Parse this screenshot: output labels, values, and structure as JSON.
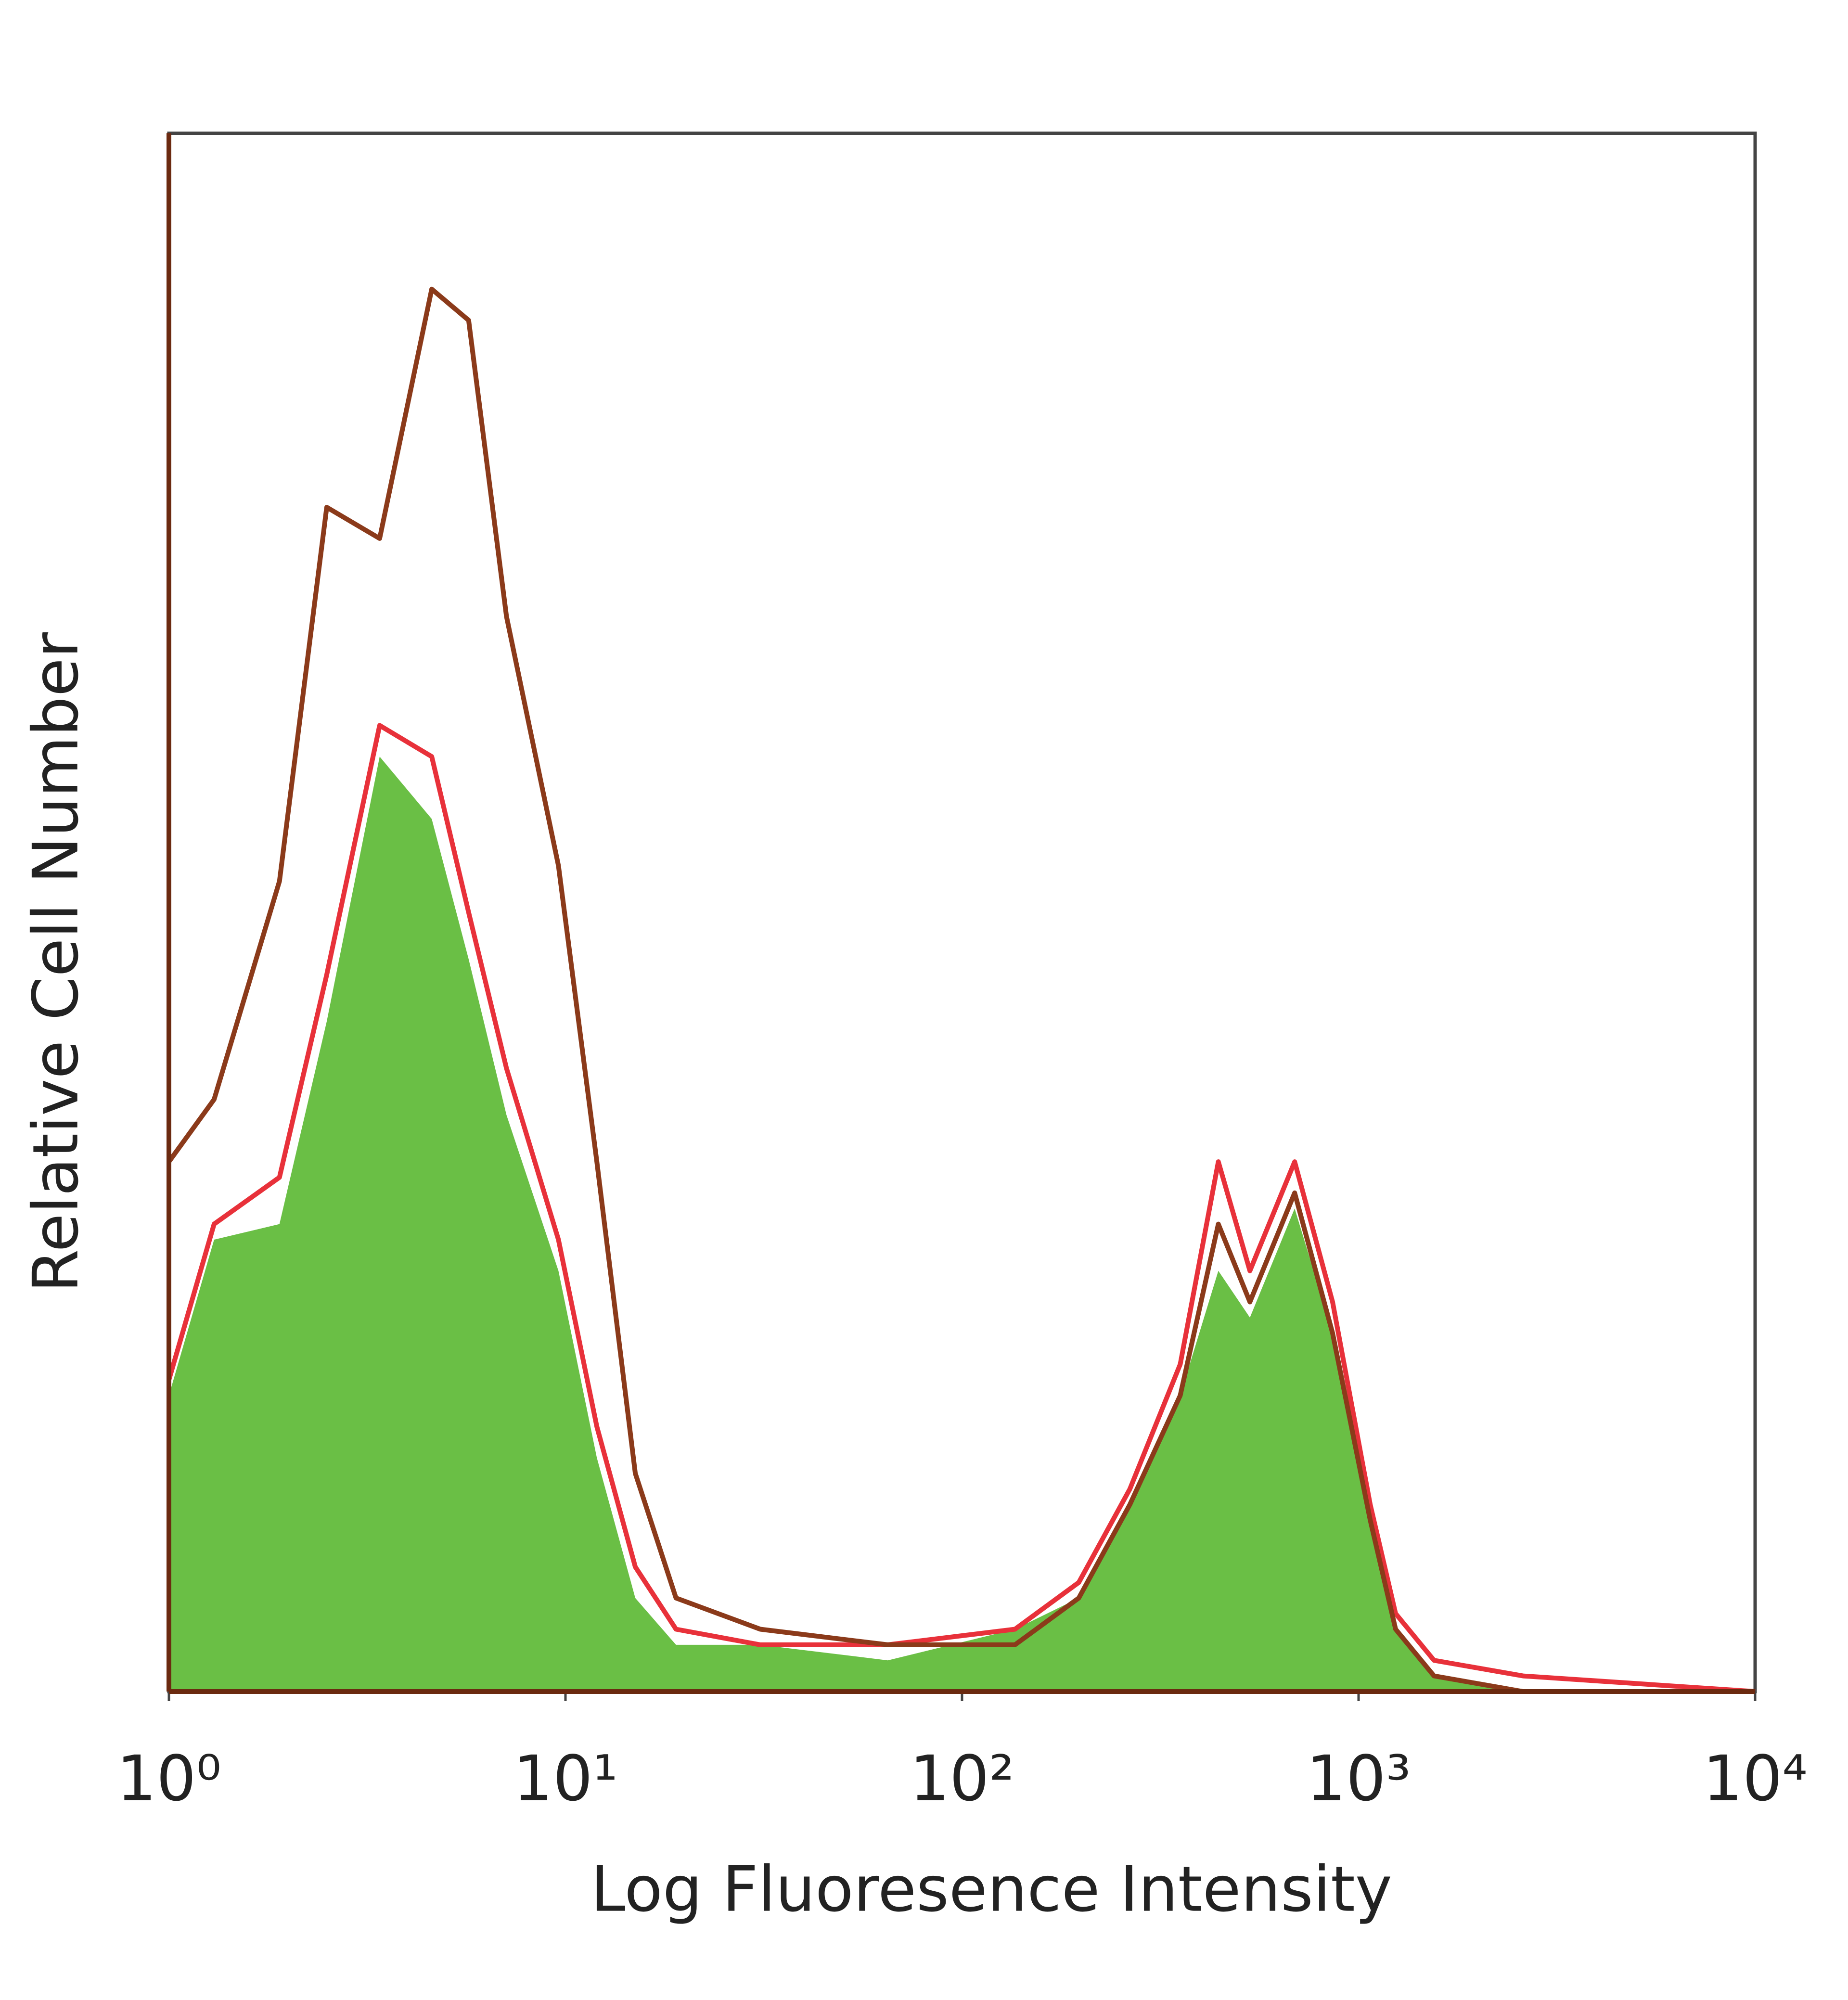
{
  "chart_data": {
    "type": "histogram-overlay",
    "xlabel": "Log Fluoresence Intensity",
    "ylabel": "Relative Cell Number",
    "xscale": "log",
    "xlim": [
      1,
      10000
    ],
    "ylim": [
      0,
      100
    ],
    "xticks": [
      {
        "value": 1,
        "label": "10⁰"
      },
      {
        "value": 10,
        "label": "10¹"
      },
      {
        "value": 100,
        "label": "10²"
      },
      {
        "value": 1000,
        "label": "10³"
      },
      {
        "value": 10000,
        "label": "10⁴"
      }
    ],
    "x": [
      1,
      1.3,
      1.9,
      2.5,
      3.4,
      4.6,
      5.7,
      7.1,
      9.6,
      12,
      15,
      19,
      31,
      65,
      136,
      197,
      265,
      355,
      443,
      532,
      690,
      860,
      1070,
      1240,
      1550,
      2600,
      10000
    ],
    "series": [
      {
        "color": "#6abf45",
        "filled": true,
        "values": [
          19,
          29,
          30,
          43,
          60,
          56,
          47,
          37,
          27,
          15,
          6,
          3,
          3,
          2,
          4,
          6,
          12,
          19,
          27,
          24,
          31,
          23,
          11,
          4,
          1,
          0,
          0
        ]
      },
      {
        "color": "#e8313a",
        "filled": false,
        "values": [
          20,
          30,
          33,
          46,
          62,
          60,
          50,
          40,
          29,
          17,
          8,
          4,
          3,
          3,
          4,
          7,
          13,
          21,
          34,
          27,
          34,
          25,
          12,
          5,
          2,
          1,
          0
        ]
      },
      {
        "color": "#8b3a1a",
        "filled": false,
        "values": [
          34,
          38,
          52,
          76,
          74,
          90,
          88,
          69,
          53,
          34,
          14,
          6,
          4,
          3,
          3,
          6,
          12,
          19,
          30,
          25,
          32,
          23,
          11,
          4,
          1,
          0,
          0
        ]
      }
    ]
  }
}
